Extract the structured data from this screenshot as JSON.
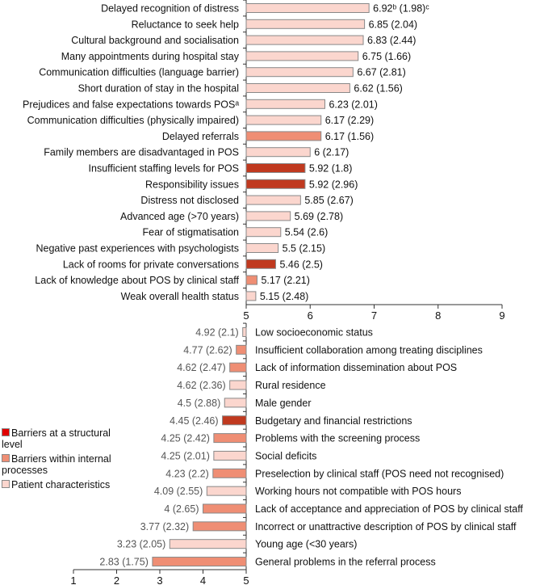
{
  "chart_data": [
    {
      "type": "bar",
      "orientation": "horizontal",
      "title": "",
      "xlim": [
        5,
        9
      ],
      "xticks": [
        5,
        6,
        7,
        8,
        9
      ],
      "categories": [
        "Delayed recognition of distress",
        "Reluctance to seek help",
        "Cultural background and socialisation",
        "Many appointments during hospital stay",
        "Communication difficulties (language barrier)",
        "Short duration of stay in the hospital",
        "Prejudices and false expectations towards POSᵃ",
        "Communication difficulties (physically impaired)",
        "Delayed referrals",
        "Family members are disadvantaged in POS",
        "Insufficient staffing levels for POS",
        "Responsibility issues",
        "Distress not disclosed",
        "Advanced age (>70 years)",
        "Fear of stigmatisation",
        "Negative past experiences with psychologists",
        "Lack of rooms for private conversations",
        "Lack of knowledge about POS by clinical staff",
        "Weak overall health status"
      ],
      "values": [
        6.92,
        6.85,
        6.83,
        6.75,
        6.67,
        6.62,
        6.23,
        6.17,
        6.17,
        6,
        5.92,
        5.92,
        5.85,
        5.69,
        5.54,
        5.5,
        5.46,
        5.17,
        5.15
      ],
      "sd": [
        1.98,
        2.04,
        2.44,
        1.66,
        2.81,
        1.56,
        2.01,
        2.29,
        1.56,
        2.17,
        1.8,
        2.96,
        2.67,
        2.78,
        2.6,
        2.15,
        2.5,
        2.21,
        2.48
      ],
      "labels": [
        "6.92ᵇ (1.98)ᶜ",
        "6.85 (2.04)",
        "6.83 (2.44)",
        "6.75 (1.66)",
        "6.67 (2.81)",
        "6.62 (1.56)",
        "6.23 (2.01)",
        "6.17 (2.29)",
        "6.17 (1.56)",
        "6 (2.17)",
        "5.92 (1.8)",
        "5.92 (2.96)",
        "5.85 (2.67)",
        "5.69 (2.78)",
        "5.54 (2.6)",
        "5.5 (2.15)",
        "5.46 (2.5)",
        "5.17 (2.21)",
        "5.15 (2.48)"
      ],
      "group": [
        "patient",
        "patient",
        "patient",
        "patient",
        "patient",
        "patient",
        "patient",
        "patient",
        "internal",
        "patient",
        "structural",
        "structural",
        "patient",
        "patient",
        "patient",
        "patient",
        "structural",
        "internal",
        "patient"
      ]
    },
    {
      "type": "bar",
      "orientation": "horizontal",
      "title": "",
      "xlim": [
        1,
        5
      ],
      "xticks": [
        1,
        2,
        3,
        4,
        5
      ],
      "categories": [
        "Low socioeconomic status",
        "Insufficient collaboration among treating disciplines",
        "Lack of information dissemination about POS",
        "Rural residence",
        "Male gender",
        "Budgetary and financial restrictions",
        "Problems with the screening process",
        "Social deficits",
        "Preselection by clinical staff (POS need not recognised)",
        "Working hours not compatible with POS hours",
        "Lack of acceptance and appreciation of POS by clinical staff",
        "Incorrect or unattractive description of POS by clinical staff",
        "Young age (<30 years)",
        "General problems in the referral process"
      ],
      "values": [
        4.92,
        4.77,
        4.62,
        4.62,
        4.5,
        4.45,
        4.25,
        4.25,
        4.23,
        4.09,
        4,
        3.77,
        3.23,
        2.83
      ],
      "sd": [
        2.1,
        2.62,
        2.47,
        2.36,
        2.88,
        2.46,
        2.42,
        2.01,
        2.2,
        2.55,
        2.65,
        2.32,
        2.05,
        1.75
      ],
      "labels": [
        "4.92 (2.1)",
        "4.77 (2.62)",
        "4.62 (2.47)",
        "4.62 (2.36)",
        "4.5 (2.88)",
        "4.45 (2.46)",
        "4.25 (2.42)",
        "4.25 (2.01)",
        "4.23 (2.2)",
        "4.09 (2.55)",
        "4 (2.65)",
        "3.77 (2.32)",
        "3.23 (2.05)",
        "2.83 (1.75)"
      ],
      "group": [
        "patient",
        "internal",
        "internal",
        "patient",
        "patient",
        "structural",
        "internal",
        "patient",
        "internal",
        "patient",
        "internal",
        "internal",
        "patient",
        "internal"
      ]
    }
  ],
  "legend": [
    {
      "key": "structural",
      "label": "Barriers at a structural level",
      "color": "#c0391f"
    },
    {
      "key": "internal",
      "label": "Barriers within internal processes",
      "color": "#ef8e74"
    },
    {
      "key": "patient",
      "label": "Patient characteristics",
      "color": "#fbd6ce"
    }
  ]
}
